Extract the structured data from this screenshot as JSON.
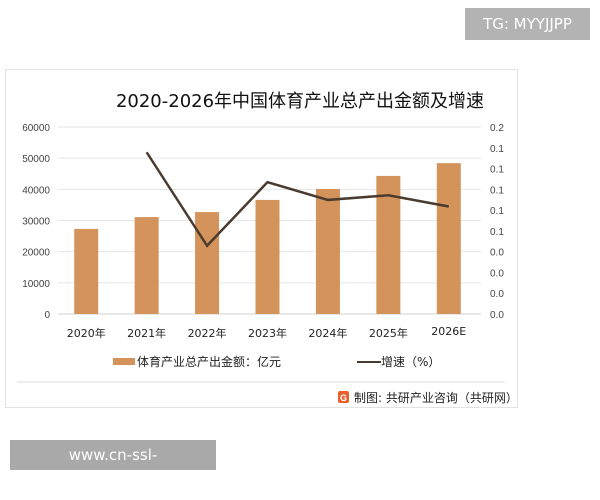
{
  "watermark_top": "TG: MYYJJPP",
  "watermark_bottom": "www.cn-ssl-kaiyunapps.com",
  "source": "制图: 共研产业咨询（共研网）",
  "chart_data": {
    "type": "bar",
    "title": "2020-2026年中国体育产业总产出金额及增速",
    "categories": [
      "2020年",
      "2021年",
      "2022年",
      "2023年",
      "2024年",
      "2025年",
      "2026E"
    ],
    "series": [
      {
        "name": "体育产业总产出金额：亿元",
        "type": "bar",
        "axis": "left",
        "color": "#d4935a",
        "values": [
          27300,
          31100,
          32700,
          36600,
          40100,
          44300,
          48400
        ]
      },
      {
        "name": "增速（%）",
        "type": "line",
        "axis": "right",
        "color": "#4a3b30",
        "values": [
          null,
          0.173,
          0.073,
          0.141,
          0.122,
          0.127,
          0.115
        ]
      }
    ],
    "left_ticks": [
      "0",
      "10000",
      "20000",
      "30000",
      "40000",
      "50000",
      "60000"
    ],
    "right_ticks": [
      "0.0",
      "0.0",
      "0.0",
      "0.0",
      "0.1",
      "0.1",
      "0.1",
      "0.1",
      "0.1",
      "0.2"
    ],
    "ylim": [
      0,
      60000
    ],
    "ylim_right": [
      0,
      0.2
    ],
    "grid": true,
    "legend": "bottom"
  }
}
